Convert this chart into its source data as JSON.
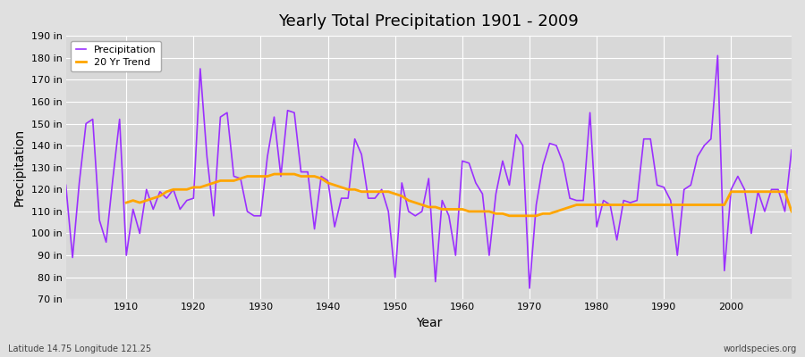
{
  "title": "Yearly Total Precipitation 1901 - 2009",
  "xlabel": "Year",
  "ylabel": "Precipitation",
  "subtitle_left": "Latitude 14.75 Longitude 121.25",
  "subtitle_right": "worldspecies.org",
  "ylim": [
    70,
    190
  ],
  "ytick_labels": [
    "70 in",
    "80 in",
    "90 in",
    "100 in",
    "110 in",
    "120 in",
    "130 in",
    "140 in",
    "150 in",
    "160 in",
    "170 in",
    "180 in",
    "190 in"
  ],
  "ytick_vals": [
    70,
    80,
    90,
    100,
    110,
    120,
    130,
    140,
    150,
    160,
    170,
    180,
    190
  ],
  "precip_color": "#9B30FF",
  "trend_color": "#FFA500",
  "bg_color": "#E0E0E0",
  "plot_bg_color": "#D8D8D8",
  "grid_color": "#FFFFFF",
  "years": [
    1901,
    1902,
    1903,
    1904,
    1905,
    1906,
    1907,
    1908,
    1909,
    1910,
    1911,
    1912,
    1913,
    1914,
    1915,
    1916,
    1917,
    1918,
    1919,
    1920,
    1921,
    1922,
    1923,
    1924,
    1925,
    1926,
    1927,
    1928,
    1929,
    1930,
    1931,
    1932,
    1933,
    1934,
    1935,
    1936,
    1937,
    1938,
    1939,
    1940,
    1941,
    1942,
    1943,
    1944,
    1945,
    1946,
    1947,
    1948,
    1949,
    1950,
    1951,
    1952,
    1953,
    1954,
    1955,
    1956,
    1957,
    1958,
    1959,
    1960,
    1961,
    1962,
    1963,
    1964,
    1965,
    1966,
    1967,
    1968,
    1969,
    1970,
    1971,
    1972,
    1973,
    1974,
    1975,
    1976,
    1977,
    1978,
    1979,
    1980,
    1981,
    1982,
    1983,
    1984,
    1985,
    1986,
    1987,
    1988,
    1989,
    1990,
    1991,
    1992,
    1993,
    1994,
    1995,
    1996,
    1997,
    1998,
    1999,
    2000,
    2001,
    2002,
    2003,
    2004,
    2005,
    2006,
    2007,
    2008,
    2009
  ],
  "precip": [
    122,
    89,
    123,
    150,
    152,
    106,
    96,
    125,
    152,
    90,
    111,
    100,
    120,
    111,
    119,
    116,
    120,
    111,
    115,
    116,
    175,
    135,
    108,
    153,
    155,
    126,
    125,
    110,
    108,
    108,
    135,
    153,
    126,
    156,
    155,
    128,
    128,
    102,
    126,
    124,
    103,
    116,
    116,
    143,
    136,
    116,
    116,
    120,
    110,
    80,
    123,
    110,
    108,
    110,
    125,
    78,
    115,
    108,
    90,
    133,
    132,
    123,
    118,
    90,
    118,
    133,
    122,
    145,
    140,
    75,
    113,
    131,
    141,
    140,
    132,
    116,
    115,
    115,
    155,
    103,
    115,
    113,
    97,
    115,
    114,
    115,
    143,
    143,
    122,
    121,
    115,
    90,
    120,
    122,
    135,
    140,
    143,
    181,
    83,
    120,
    126,
    120,
    100,
    119,
    110,
    120,
    120,
    110,
    138
  ],
  "trend_years": [
    1910,
    1911,
    1912,
    1913,
    1914,
    1915,
    1916,
    1917,
    1918,
    1919,
    1920,
    1921,
    1922,
    1923,
    1924,
    1925,
    1926,
    1927,
    1928,
    1929,
    1930,
    1931,
    1932,
    1933,
    1934,
    1935,
    1936,
    1937,
    1938,
    1939,
    1940,
    1941,
    1942,
    1943,
    1944,
    1945,
    1946,
    1947,
    1948,
    1949,
    1950,
    1951,
    1952,
    1953,
    1954,
    1955,
    1956,
    1957,
    1958,
    1959,
    1960,
    1961,
    1962,
    1963,
    1964,
    1965,
    1966,
    1967,
    1968,
    1969,
    1970,
    1971,
    1972,
    1973,
    1974,
    1975,
    1976,
    1977,
    1978,
    1979,
    1980,
    1981,
    1982,
    1983,
    1984,
    1985,
    1986,
    1987,
    1988,
    1989,
    1990,
    1991,
    1992,
    1993,
    1994,
    1995,
    1996,
    1997,
    1998,
    1999,
    2000,
    2001,
    2002,
    2003,
    2004,
    2005,
    2006,
    2007,
    2008,
    2009
  ],
  "trend": [
    114,
    115,
    114,
    115,
    116,
    117,
    119,
    120,
    120,
    120,
    121,
    121,
    122,
    123,
    124,
    124,
    124,
    125,
    126,
    126,
    126,
    126,
    127,
    127,
    127,
    127,
    126,
    126,
    126,
    125,
    123,
    122,
    121,
    120,
    120,
    119,
    119,
    119,
    119,
    119,
    118,
    117,
    115,
    114,
    113,
    112,
    112,
    111,
    111,
    111,
    111,
    110,
    110,
    110,
    110,
    109,
    109,
    108,
    108,
    108,
    108,
    108,
    109,
    109,
    110,
    111,
    112,
    113,
    113,
    113,
    113,
    113,
    113,
    113,
    113,
    113,
    113,
    113,
    113,
    113,
    113,
    113,
    113,
    113,
    113,
    113,
    113,
    113,
    113,
    113,
    119,
    119,
    119,
    119,
    119,
    119,
    119,
    119,
    119,
    110
  ]
}
